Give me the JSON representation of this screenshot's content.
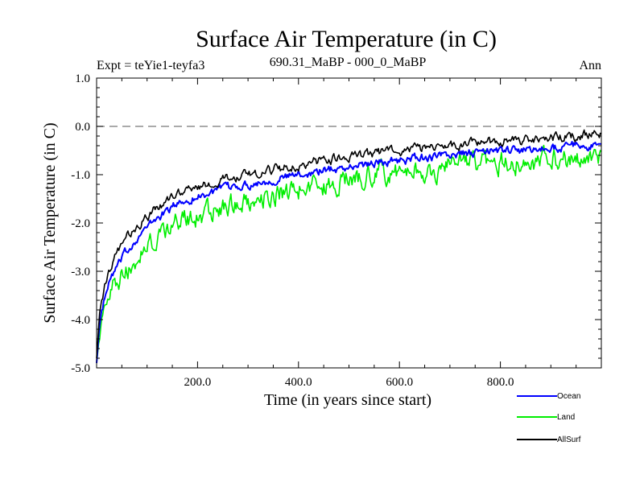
{
  "chart_data": {
    "type": "line",
    "title": "Surface Air Temperature (in C)",
    "subtitle_left": "Expt = teYie1-teyfa3",
    "subtitle_center": "690.31_MaBP - 000_0_MaBP",
    "subtitle_right": "Ann",
    "xlabel": "Time (in years since start)",
    "ylabel": "Surface Air Temperature (in C)",
    "xlim": [
      0,
      1000
    ],
    "ylim": [
      -5.0,
      1.0
    ],
    "xticks": [
      200,
      400,
      600,
      800
    ],
    "xtick_labels": [
      "200.0",
      "400.0",
      "600.0",
      "800.0"
    ],
    "yticks": [
      1.0,
      0.0,
      -1.0,
      -2.0,
      -3.0,
      -4.0,
      -5.0
    ],
    "ytick_labels": [
      "1.0",
      "0.0",
      "-1.0",
      "-2.0",
      "-3.0",
      "-4.0",
      "-5.0"
    ],
    "reference_line": 0.0,
    "legend_position": "bottom-right",
    "series": [
      {
        "name": "Ocean",
        "color": "#0000ff",
        "noise": 0.07,
        "anchors": {
          "x": [
            0,
            5,
            15,
            30,
            50,
            80,
            120,
            160,
            200,
            250,
            300,
            350,
            400,
            450,
            500,
            550,
            600,
            650,
            700,
            750,
            800,
            850,
            900,
            950,
            1000
          ],
          "y": [
            -4.9,
            -4.2,
            -3.6,
            -3.1,
            -2.75,
            -2.3,
            -1.9,
            -1.6,
            -1.45,
            -1.3,
            -1.2,
            -1.1,
            -1.0,
            -0.9,
            -0.85,
            -0.75,
            -0.7,
            -0.65,
            -0.6,
            -0.55,
            -0.5,
            -0.5,
            -0.45,
            -0.4,
            -0.4
          ]
        }
      },
      {
        "name": "Land",
        "color": "#00ee00",
        "noise": 0.18,
        "anchors": {
          "x": [
            0,
            5,
            15,
            30,
            50,
            80,
            120,
            160,
            200,
            250,
            300,
            350,
            400,
            450,
            500,
            550,
            600,
            650,
            700,
            750,
            800,
            850,
            900,
            950,
            1000
          ],
          "y": [
            -4.9,
            -4.4,
            -3.9,
            -3.4,
            -3.1,
            -2.7,
            -2.3,
            -2.0,
            -1.85,
            -1.65,
            -1.5,
            -1.4,
            -1.3,
            -1.2,
            -1.1,
            -1.0,
            -0.95,
            -0.9,
            -0.85,
            -0.8,
            -0.75,
            -0.75,
            -0.7,
            -0.65,
            -0.6
          ]
        }
      },
      {
        "name": "AllSurf",
        "color": "#000000",
        "noise": 0.08,
        "anchors": {
          "x": [
            0,
            5,
            15,
            30,
            50,
            80,
            120,
            160,
            200,
            250,
            300,
            350,
            400,
            450,
            500,
            550,
            600,
            650,
            700,
            750,
            800,
            850,
            900,
            950,
            1000
          ],
          "y": [
            -4.8,
            -4.0,
            -3.4,
            -2.85,
            -2.45,
            -2.05,
            -1.7,
            -1.4,
            -1.25,
            -1.1,
            -1.0,
            -0.9,
            -0.8,
            -0.7,
            -0.6,
            -0.55,
            -0.5,
            -0.45,
            -0.4,
            -0.35,
            -0.3,
            -0.3,
            -0.25,
            -0.2,
            -0.15
          ]
        }
      }
    ]
  }
}
